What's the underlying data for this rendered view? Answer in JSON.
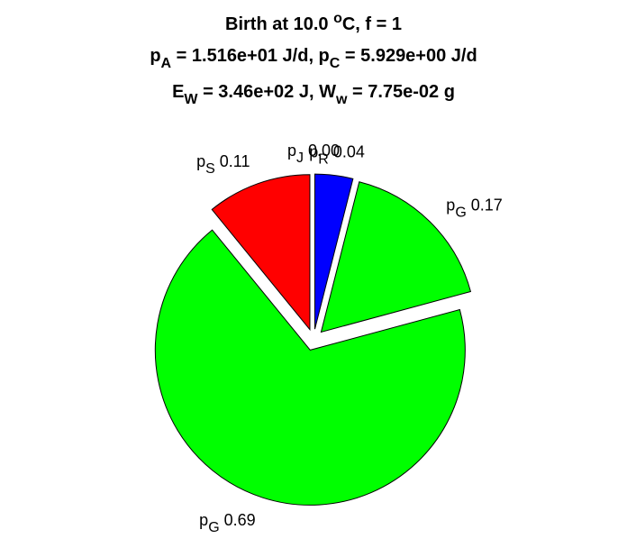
{
  "chart_data": {
    "type": "pie",
    "exploded": true,
    "title_lines": [
      [
        {
          "t": "Birth at 10.0 "
        },
        {
          "t": "o",
          "sup": true
        },
        {
          "t": "C, f = 1"
        }
      ],
      [
        {
          "t": "p"
        },
        {
          "t": "A",
          "sub": true
        },
        {
          "t": " = 1.516e+01 J/d, p"
        },
        {
          "t": "C",
          "sub": true
        },
        {
          "t": " = 5.929e+00 J/d"
        }
      ],
      [
        {
          "t": "E"
        },
        {
          "t": "W",
          "sub": true
        },
        {
          "t": " = 3.46e+02 J, W"
        },
        {
          "t": "w",
          "sub": true
        },
        {
          "t": " = 7.75e-02 g"
        }
      ]
    ],
    "slices": [
      {
        "name": "p",
        "sub": "R",
        "value": 0.04,
        "value_label": "0.04",
        "color": "#0000ff"
      },
      {
        "name": "p",
        "sub": "G",
        "value": 0.17,
        "value_label": "0.17",
        "color": "#00ff00"
      },
      {
        "name": "p",
        "sub": "G",
        "value": 0.69,
        "value_label": "0.69",
        "color": "#00ff00"
      },
      {
        "name": "p",
        "sub": "S",
        "value": 0.11,
        "value_label": "0.11",
        "color": "#ff0000"
      },
      {
        "name": "p",
        "sub": "J",
        "value": 0.0,
        "value_label": "0.00",
        "color": "#ffff00"
      }
    ]
  }
}
